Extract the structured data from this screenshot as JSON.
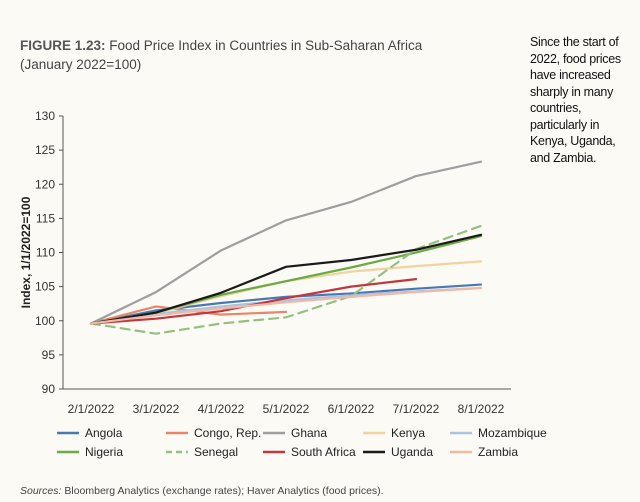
{
  "figure": {
    "number": "FIGURE 1.23:",
    "title": " Food Price Index in Countries in Sub-Saharan Africa",
    "subtitle": "(January 2022=100)"
  },
  "sidenote": "Since the start of 2022, food prices have increased sharply in many countries, particularly in Kenya, Uganda, and Zambia.",
  "source": {
    "label": "Sources:",
    "text": " Bloomberg Analytics (exchange rates); Haver Analytics (food prices)."
  },
  "chart_data": {
    "type": "line",
    "title": "",
    "xlabel": "",
    "ylabel": "Index, 1/1/2022=100",
    "ylim": [
      90,
      130
    ],
    "yticks": [
      90,
      95,
      100,
      105,
      110,
      115,
      120,
      125,
      130
    ],
    "categories": [
      "2/1/2022",
      "3/1/2022",
      "4/1/2022",
      "5/1/2022",
      "6/1/2022",
      "7/1/2022",
      "8/1/2022"
    ],
    "grid": false,
    "legend_position": "bottom",
    "series": [
      {
        "name": "Angola",
        "color": "#4a78b5",
        "dash": false,
        "values": [
          99.6,
          101.5,
          102.6,
          103.5,
          104.0,
          104.7,
          105.3
        ]
      },
      {
        "name": "Congo, Rep.",
        "color": "#e8866a",
        "dash": false,
        "values": [
          99.6,
          102.1,
          100.9,
          101.3,
          null,
          null,
          null
        ]
      },
      {
        "name": "Ghana",
        "color": "#9e9e9e",
        "dash": false,
        "values": [
          99.6,
          104.2,
          110.3,
          114.7,
          117.4,
          121.2,
          123.3
        ]
      },
      {
        "name": "Kenya",
        "color": "#f2d3a0",
        "dash": false,
        "values": [
          99.6,
          101.1,
          103.6,
          105.8,
          107.2,
          108.0,
          108.7
        ]
      },
      {
        "name": "Mozambique",
        "color": "#a9c4e0",
        "dash": false,
        "values": [
          99.6,
          101.0,
          102.1,
          103.0,
          103.7,
          104.3,
          104.8
        ]
      },
      {
        "name": "Nigeria",
        "color": "#6aaa45",
        "dash": false,
        "values": [
          99.6,
          101.2,
          103.8,
          105.8,
          107.8,
          110.0,
          112.4
        ]
      },
      {
        "name": "Senegal",
        "color": "#94c082",
        "dash": true,
        "values": [
          99.6,
          98.1,
          99.6,
          100.5,
          103.6,
          110.5,
          113.9
        ]
      },
      {
        "name": "South Africa",
        "color": "#c2363d",
        "dash": false,
        "values": [
          99.6,
          100.3,
          101.4,
          103.3,
          105.0,
          106.1,
          null
        ]
      },
      {
        "name": "Uganda",
        "color": "#1a1a1a",
        "dash": false,
        "values": [
          99.6,
          101.2,
          104.1,
          107.9,
          108.9,
          110.4,
          112.6
        ]
      },
      {
        "name": "Zambia",
        "color": "#f0b9a6",
        "dash": false,
        "values": [
          99.6,
          100.8,
          101.8,
          102.7,
          103.5,
          104.2,
          104.8
        ]
      }
    ]
  }
}
